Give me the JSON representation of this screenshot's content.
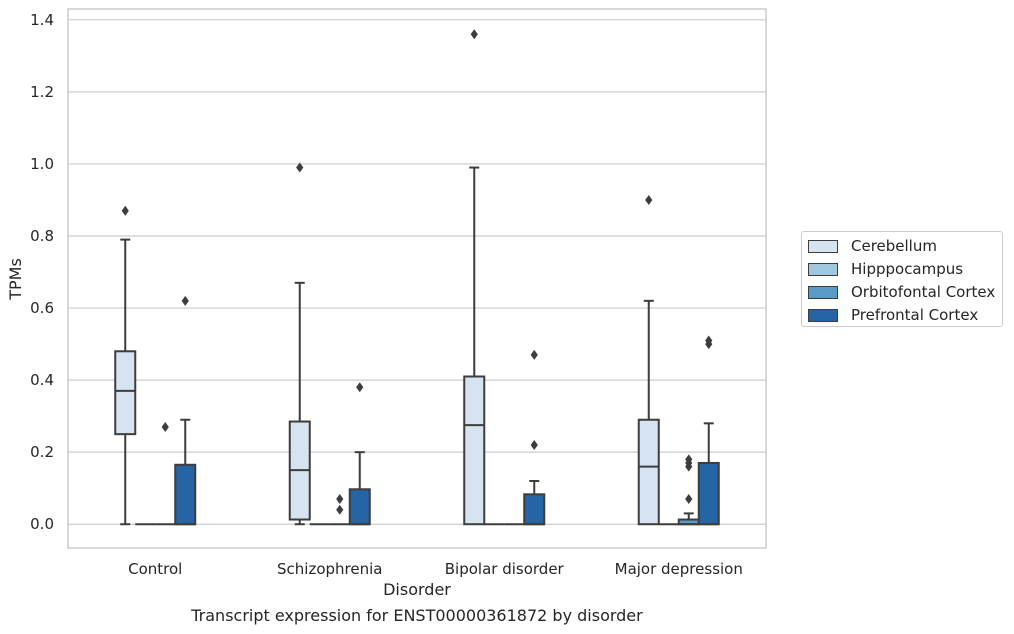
{
  "caption": "Transcript expression for ENST00000361872 by disorder",
  "chart_data": {
    "type": "boxplot",
    "title": "",
    "xlabel": "Disorder",
    "ylabel": "TPMs",
    "ylim": [
      -0.066,
      1.43
    ],
    "yticks": [
      0.0,
      0.2,
      0.4,
      0.6,
      0.8,
      1.0,
      1.2,
      1.4
    ],
    "ytick_labels": [
      "0.0",
      "0.2",
      "0.4",
      "0.6",
      "0.8",
      "1.0",
      "1.2",
      "1.4"
    ],
    "grid": "horizontal",
    "legend_position": "right",
    "categories": [
      "Control",
      "Schizophrenia",
      "Bipolar disorder",
      "Major depression"
    ],
    "series": [
      {
        "name": "Cerebellum",
        "color": "#d6e4f2",
        "boxes": [
          {
            "whislo": 0.0,
            "q1": 0.25,
            "med": 0.37,
            "q3": 0.48,
            "whishi": 0.79,
            "fliers": [
              0.87
            ]
          },
          {
            "whislo": 0.0,
            "q1": 0.013,
            "med": 0.15,
            "q3": 0.285,
            "whishi": 0.67,
            "fliers": [
              0.99
            ]
          },
          {
            "whislo": 0.0,
            "q1": 0.0,
            "med": 0.275,
            "q3": 0.41,
            "whishi": 0.99,
            "fliers": [
              1.36
            ]
          },
          {
            "whislo": 0.0,
            "q1": 0.0,
            "med": 0.16,
            "q3": 0.29,
            "whishi": 0.62,
            "fliers": [
              0.9
            ]
          }
        ]
      },
      {
        "name": "Hipppocampus",
        "color": "#a0c7e0",
        "boxes": [
          {
            "whislo": 0.0,
            "q1": 0.0,
            "med": 0.0,
            "q3": 0.0,
            "whishi": 0.0,
            "fliers": []
          },
          {
            "whislo": 0.0,
            "q1": 0.0,
            "med": 0.0,
            "q3": 0.0,
            "whishi": 0.0,
            "fliers": []
          },
          {
            "whislo": 0.0,
            "q1": 0.0,
            "med": 0.0,
            "q3": 0.0,
            "whishi": 0.0,
            "fliers": []
          },
          {
            "whislo": 0.0,
            "q1": 0.0,
            "med": 0.0,
            "q3": 0.0,
            "whishi": 0.0,
            "fliers": []
          }
        ]
      },
      {
        "name": "Orbitofontal Cortex",
        "color": "#5a9cc8",
        "boxes": [
          {
            "whislo": 0.0,
            "q1": 0.0,
            "med": 0.0,
            "q3": 0.0,
            "whishi": 0.0,
            "fliers": [
              0.27
            ]
          },
          {
            "whislo": 0.0,
            "q1": 0.0,
            "med": 0.0,
            "q3": 0.0,
            "whishi": 0.0,
            "fliers": [
              0.04,
              0.07
            ]
          },
          {
            "whislo": 0.0,
            "q1": 0.0,
            "med": 0.0,
            "q3": 0.0,
            "whishi": 0.0,
            "fliers": []
          },
          {
            "whislo": 0.0,
            "q1": 0.0,
            "med": 0.0,
            "q3": 0.013,
            "whishi": 0.03,
            "fliers": [
              0.07,
              0.16,
              0.17,
              0.18
            ]
          }
        ]
      },
      {
        "name": "Prefrontal Cortex",
        "color": "#2565a6",
        "boxes": [
          {
            "whislo": 0.0,
            "q1": 0.0,
            "med": 0.0,
            "q3": 0.165,
            "whishi": 0.29,
            "fliers": [
              0.62
            ]
          },
          {
            "whislo": 0.0,
            "q1": 0.0,
            "med": 0.0,
            "q3": 0.097,
            "whishi": 0.2,
            "fliers": [
              0.38
            ]
          },
          {
            "whislo": 0.0,
            "q1": 0.0,
            "med": 0.0,
            "q3": 0.083,
            "whishi": 0.12,
            "fliers": [
              0.22,
              0.47
            ]
          },
          {
            "whislo": 0.0,
            "q1": 0.0,
            "med": 0.0,
            "q3": 0.17,
            "whishi": 0.28,
            "fliers": [
              0.5,
              0.51
            ]
          }
        ]
      }
    ]
  }
}
